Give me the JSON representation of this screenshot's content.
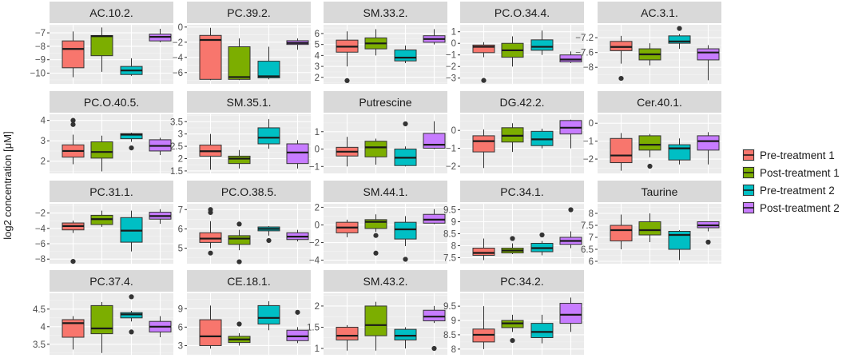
{
  "figure": {
    "y_axis_label": "log2 concentration [μM]",
    "legend": [
      {
        "label": "Pre-treatment 1",
        "color": "#F8766D"
      },
      {
        "label": "Post-treatment 1",
        "color": "#7CAE00"
      },
      {
        "label": "Pre-treatment 2",
        "color": "#00BFC4"
      },
      {
        "label": "Post-treatment 2",
        "color": "#C77CFF"
      }
    ],
    "legend_position": "right"
  },
  "chart_data": {
    "type": "boxplot",
    "groups": [
      "Pre-treatment 1",
      "Post-treatment 1",
      "Pre-treatment 2",
      "Post-treatment 2"
    ],
    "ylabel": "log2 concentration [μM]",
    "xlabel": "",
    "facets": [
      {
        "title": "AC.10.2.",
        "ylim": [
          -10.8,
          -6.4
        ],
        "yticks": [
          -7,
          -8,
          -9,
          -10
        ],
        "boxes": [
          {
            "min": -10.3,
            "q1": -9.6,
            "median": -8.2,
            "q3": -7.6,
            "max": -6.9,
            "outliers": []
          },
          {
            "min": -9.9,
            "q1": -8.7,
            "median": -7.25,
            "q3": -7.2,
            "max": -6.6,
            "outliers": []
          },
          {
            "min": -10.2,
            "q1": -10.1,
            "median": -9.8,
            "q3": -9.5,
            "max": -8.9,
            "outliers": []
          },
          {
            "min": -7.7,
            "q1": -7.6,
            "median": -7.3,
            "q3": -7.1,
            "max": -6.7,
            "outliers": []
          }
        ]
      },
      {
        "title": "PC.39.2.",
        "ylim": [
          -7.5,
          0.3
        ],
        "yticks": [
          0,
          -2,
          -4,
          -6
        ],
        "boxes": [
          {
            "min": -7.0,
            "q1": -6.9,
            "median": -1.7,
            "q3": -1.1,
            "max": -0.1,
            "outliers": []
          },
          {
            "min": -7.0,
            "q1": -6.9,
            "median": -6.6,
            "q3": -2.6,
            "max": -1.5,
            "outliers": []
          },
          {
            "min": -6.9,
            "q1": -6.7,
            "median": -6.5,
            "q3": -4.5,
            "max": -2.6,
            "outliers": []
          },
          {
            "min": -3.0,
            "q1": -2.3,
            "median": -2.1,
            "q3": -1.8,
            "max": -1.5,
            "outliers": []
          }
        ]
      },
      {
        "title": "SM.33.2.",
        "ylim": [
          1.4,
          6.8
        ],
        "yticks": [
          6,
          5,
          4,
          3,
          2
        ],
        "boxes": [
          {
            "min": 3.0,
            "q1": 4.3,
            "median": 4.8,
            "q3": 5.4,
            "max": 6.2,
            "outliers": [
              1.7
            ]
          },
          {
            "min": 4.0,
            "q1": 4.6,
            "median": 5.1,
            "q3": 5.6,
            "max": 6.4,
            "outliers": []
          },
          {
            "min": 3.3,
            "q1": 3.5,
            "median": 3.8,
            "q3": 4.5,
            "max": 4.9,
            "outliers": []
          },
          {
            "min": 5.0,
            "q1": 5.2,
            "median": 5.5,
            "q3": 5.8,
            "max": 6.4,
            "outliers": []
          }
        ]
      },
      {
        "title": "PC.O.34.4.",
        "ylim": [
          -3.5,
          1.6
        ],
        "yticks": [
          1,
          0,
          -1,
          -2,
          -3
        ],
        "boxes": [
          {
            "min": -1.2,
            "q1": -0.8,
            "median": -0.3,
            "q3": -0.15,
            "max": 0.1,
            "outliers": [
              -3.2
            ]
          },
          {
            "min": -2.0,
            "q1": -1.2,
            "median": -0.6,
            "q3": 0.0,
            "max": 0.6,
            "outliers": []
          },
          {
            "min": -1.0,
            "q1": -0.6,
            "median": -0.3,
            "q3": 0.3,
            "max": 1.1,
            "outliers": []
          },
          {
            "min": -1.7,
            "q1": -1.6,
            "median": -1.4,
            "q3": -1.0,
            "max": -0.7,
            "outliers": []
          }
        ]
      },
      {
        "title": "AC.3.1.",
        "ylim": [
          -8.45,
          -6.85
        ],
        "yticks": [
          -7.2,
          -7.6,
          -8.0
        ],
        "boxes": [
          {
            "min": -7.9,
            "q1": -7.55,
            "median": -7.45,
            "q3": -7.3,
            "max": -7.15,
            "outliers": [
              -8.3
            ]
          },
          {
            "min": -7.95,
            "q1": -7.8,
            "median": -7.65,
            "q3": -7.5,
            "max": -7.35,
            "outliers": []
          },
          {
            "min": -7.5,
            "q1": -7.35,
            "median": -7.3,
            "q3": -7.15,
            "max": -7.1,
            "outliers": [
              -6.95
            ]
          },
          {
            "min": -8.35,
            "q1": -7.8,
            "median": -7.6,
            "q3": -7.5,
            "max": -7.4,
            "outliers": []
          }
        ]
      },
      {
        "title": "PC.O.40.5.",
        "ylim": [
          1.4,
          4.3
        ],
        "yticks": [
          4,
          3,
          2
        ],
        "boxes": [
          {
            "min": 1.85,
            "q1": 2.2,
            "median": 2.5,
            "q3": 2.8,
            "max": 3.3,
            "outliers": [
              3.8,
              4.0
            ]
          },
          {
            "min": 1.5,
            "q1": 2.15,
            "median": 2.45,
            "q3": 2.95,
            "max": 3.25,
            "outliers": []
          },
          {
            "min": 2.95,
            "q1": 3.1,
            "median": 3.3,
            "q3": 3.35,
            "max": 3.4,
            "outliers": [
              2.65
            ]
          },
          {
            "min": 2.3,
            "q1": 2.5,
            "median": 2.75,
            "q3": 3.05,
            "max": 3.15,
            "outliers": []
          }
        ]
      },
      {
        "title": "SM.35.1.",
        "ylim": [
          1.4,
          3.8
        ],
        "yticks": [
          3.5,
          3.0,
          2.5,
          2.0,
          1.5
        ],
        "boxes": [
          {
            "min": 1.55,
            "q1": 2.1,
            "median": 2.3,
            "q3": 2.55,
            "max": 3.0,
            "outliers": []
          },
          {
            "min": 1.6,
            "q1": 1.8,
            "median": 2.0,
            "q3": 2.1,
            "max": 2.35,
            "outliers": []
          },
          {
            "min": 2.4,
            "q1": 2.6,
            "median": 2.85,
            "q3": 3.25,
            "max": 3.6,
            "outliers": []
          },
          {
            "min": 1.6,
            "q1": 1.8,
            "median": 2.25,
            "q3": 2.6,
            "max": 2.75,
            "outliers": []
          }
        ]
      },
      {
        "title": "Putrescine",
        "ylim": [
          -1.4,
          2.0
        ],
        "yticks": [
          1,
          0,
          -1
        ],
        "boxes": [
          {
            "min": -1.0,
            "q1": -0.4,
            "median": -0.15,
            "q3": 0.1,
            "max": 0.7,
            "outliers": []
          },
          {
            "min": -0.9,
            "q1": -0.45,
            "median": 0.1,
            "q3": 0.45,
            "max": 0.6,
            "outliers": []
          },
          {
            "min": -1.0,
            "q1": -0.95,
            "median": -0.5,
            "q3": 0.0,
            "max": 0.15,
            "outliers": [
              1.45
            ]
          },
          {
            "min": 0.0,
            "q1": 0.05,
            "median": 0.25,
            "q3": 0.9,
            "max": 1.6,
            "outliers": []
          }
        ]
      },
      {
        "title": "DG.42.2.",
        "ylim": [
          -2.4,
          0.9
        ],
        "yticks": [
          0,
          -1,
          -2
        ],
        "boxes": [
          {
            "min": -2.1,
            "q1": -1.2,
            "median": -0.6,
            "q3": -0.3,
            "max": 0.05,
            "outliers": []
          },
          {
            "min": -1.2,
            "q1": -0.65,
            "median": -0.3,
            "q3": 0.15,
            "max": 0.4,
            "outliers": []
          },
          {
            "min": -1.0,
            "q1": -0.85,
            "median": -0.5,
            "q3": -0.05,
            "max": 0.1,
            "outliers": []
          },
          {
            "min": -1.0,
            "q1": -0.2,
            "median": 0.15,
            "q3": 0.55,
            "max": 0.6,
            "outliers": []
          }
        ]
      },
      {
        "title": "Cer.40.1.",
        "ylim": [
          -2.8,
          0.5
        ],
        "yticks": [
          0,
          -1,
          -2
        ],
        "boxes": [
          {
            "min": -2.65,
            "q1": -2.2,
            "median": -1.8,
            "q3": -0.85,
            "max": -0.55,
            "outliers": []
          },
          {
            "min": -1.9,
            "q1": -1.5,
            "median": -1.2,
            "q3": -0.7,
            "max": -0.6,
            "outliers": [
              -2.4
            ]
          },
          {
            "min": -2.3,
            "q1": -2.05,
            "median": -1.4,
            "q3": -1.2,
            "max": -0.85,
            "outliers": []
          },
          {
            "min": -2.3,
            "q1": -1.5,
            "median": -1.0,
            "q3": -0.7,
            "max": -0.5,
            "outliers": []
          }
        ]
      },
      {
        "title": "PC.31.1.",
        "ylim": [
          -8.6,
          -0.8
        ],
        "yticks": [
          -2,
          -4,
          -6,
          -8
        ],
        "boxes": [
          {
            "min": -4.6,
            "q1": -4.2,
            "median": -3.7,
            "q3": -3.3,
            "max": -3.0,
            "outliers": [
              -8.3
            ]
          },
          {
            "min": -3.8,
            "q1": -3.5,
            "median": -2.8,
            "q3": -2.3,
            "max": -1.7,
            "outliers": []
          },
          {
            "min": -7.0,
            "q1": -5.8,
            "median": -4.3,
            "q3": -2.6,
            "max": -1.7,
            "outliers": []
          },
          {
            "min": -3.4,
            "q1": -2.8,
            "median": -2.4,
            "q3": -1.9,
            "max": -1.5,
            "outliers": []
          }
        ]
      },
      {
        "title": "PC.O.38.5.",
        "ylim": [
          4.2,
          7.3
        ],
        "yticks": [
          7,
          6,
          5
        ],
        "boxes": [
          {
            "min": 5.0,
            "q1": 5.3,
            "median": 5.5,
            "q3": 5.8,
            "max": 6.4,
            "outliers": [
              4.75,
              6.85,
              7.0
            ]
          },
          {
            "min": 4.9,
            "q1": 5.2,
            "median": 5.5,
            "q3": 5.65,
            "max": 5.95,
            "outliers": [
              4.3,
              6.25
            ]
          },
          {
            "min": 5.65,
            "q1": 5.9,
            "median": 6.0,
            "q3": 6.1,
            "max": 6.15,
            "outliers": [
              5.4
            ]
          },
          {
            "min": 5.35,
            "q1": 5.45,
            "median": 5.6,
            "q3": 5.8,
            "max": 5.95,
            "outliers": []
          }
        ]
      },
      {
        "title": "SM.44.1.",
        "ylim": [
          -4.4,
          2.4
        ],
        "yticks": [
          2,
          0,
          -2,
          -4
        ],
        "boxes": [
          {
            "min": -1.4,
            "q1": -0.9,
            "median": -0.3,
            "q3": 0.3,
            "max": 0.6,
            "outliers": []
          },
          {
            "min": -0.8,
            "q1": -0.4,
            "median": 0.35,
            "q3": 0.6,
            "max": 1.2,
            "outliers": [
              -1.2,
              -3.2
            ]
          },
          {
            "min": -2.4,
            "q1": -1.6,
            "median": -0.5,
            "q3": 0.3,
            "max": 1.0,
            "outliers": [
              -3.9
            ]
          },
          {
            "min": 0.1,
            "q1": 0.2,
            "median": 0.6,
            "q3": 1.2,
            "max": 1.8,
            "outliers": []
          }
        ]
      },
      {
        "title": "PC.34.1.",
        "ylim": [
          7.25,
          9.75
        ],
        "yticks": [
          9.5,
          9.0,
          8.5,
          8.0,
          7.5
        ],
        "boxes": [
          {
            "min": 7.4,
            "q1": 7.6,
            "median": 7.7,
            "q3": 7.9,
            "max": 8.3,
            "outliers": []
          },
          {
            "min": 7.65,
            "q1": 7.7,
            "median": 7.8,
            "q3": 7.9,
            "max": 8.1,
            "outliers": [
              8.3
            ]
          },
          {
            "min": 7.6,
            "q1": 7.75,
            "median": 7.9,
            "q3": 8.1,
            "max": 8.2,
            "outliers": [
              8.45
            ]
          },
          {
            "min": 7.9,
            "q1": 8.05,
            "median": 8.2,
            "q3": 8.35,
            "max": 8.6,
            "outliers": [
              9.5
            ]
          }
        ]
      },
      {
        "title": "Taurine",
        "ylim": [
          5.9,
          8.4
        ],
        "yticks": [
          8.0,
          7.5,
          7.0,
          6.5,
          6.0
        ],
        "boxes": [
          {
            "min": 6.5,
            "q1": 6.85,
            "median": 7.3,
            "q3": 7.5,
            "max": 7.95,
            "outliers": []
          },
          {
            "min": 6.8,
            "q1": 7.1,
            "median": 7.3,
            "q3": 7.65,
            "max": 8.0,
            "outliers": []
          },
          {
            "min": 6.05,
            "q1": 6.5,
            "median": 7.1,
            "q3": 7.25,
            "max": 7.3,
            "outliers": []
          },
          {
            "min": 7.25,
            "q1": 7.4,
            "median": 7.5,
            "q3": 7.65,
            "max": 7.65,
            "outliers": [
              6.8
            ]
          }
        ]
      },
      {
        "title": "PC.37.4.",
        "ylim": [
          3.2,
          4.95
        ],
        "yticks": [
          4.5,
          4.0,
          3.5
        ],
        "boxes": [
          {
            "min": 3.35,
            "q1": 3.7,
            "median": 4.1,
            "q3": 4.2,
            "max": 4.3,
            "outliers": []
          },
          {
            "min": 3.25,
            "q1": 3.8,
            "median": 3.95,
            "q3": 4.6,
            "max": 4.7,
            "outliers": []
          },
          {
            "min": 4.15,
            "q1": 4.25,
            "median": 4.35,
            "q3": 4.4,
            "max": 4.45,
            "outliers": [
              3.85,
              4.85
            ]
          },
          {
            "min": 3.7,
            "q1": 3.85,
            "median": 4.0,
            "q3": 4.15,
            "max": 4.3,
            "outliers": []
          }
        ]
      },
      {
        "title": "CE.18.1.",
        "ylim": [
          1.5,
          11.5
        ],
        "yticks": [
          9,
          6,
          3
        ],
        "boxes": [
          {
            "min": 2.5,
            "q1": 3.0,
            "median": 4.5,
            "q3": 7.2,
            "max": 9.5,
            "outliers": []
          },
          {
            "min": 3.0,
            "q1": 3.5,
            "median": 4.0,
            "q3": 4.5,
            "max": 5.0,
            "outliers": [
              6.5
            ]
          },
          {
            "min": 5.5,
            "q1": 6.5,
            "median": 7.5,
            "q3": 9.5,
            "max": 10.2,
            "outliers": []
          },
          {
            "min": 3.4,
            "q1": 3.8,
            "median": 4.5,
            "q3": 5.5,
            "max": 6.0,
            "outliers": [
              8.4
            ]
          }
        ]
      },
      {
        "title": "SM.43.2.",
        "ylim": [
          0.85,
          2.3
        ],
        "yticks": [
          2.0,
          1.5,
          1.0
        ],
        "boxes": [
          {
            "min": 0.95,
            "q1": 1.2,
            "median": 1.3,
            "q3": 1.5,
            "max": 1.55,
            "outliers": []
          },
          {
            "min": 0.95,
            "q1": 1.3,
            "median": 1.55,
            "q3": 2.0,
            "max": 2.1,
            "outliers": []
          },
          {
            "min": 1.0,
            "q1": 1.2,
            "median": 1.3,
            "q3": 1.45,
            "max": 1.5,
            "outliers": []
          },
          {
            "min": 1.6,
            "q1": 1.65,
            "median": 1.75,
            "q3": 1.9,
            "max": 2.0,
            "outliers": [
              1.0
            ]
          }
        ]
      },
      {
        "title": "PC.34.2.",
        "ylim": [
          7.8,
          9.95
        ],
        "yticks": [
          9.5,
          9.0,
          8.5,
          8.0
        ],
        "boxes": [
          {
            "min": 8.0,
            "q1": 8.25,
            "median": 8.5,
            "q3": 8.7,
            "max": 9.5,
            "outliers": []
          },
          {
            "min": 8.6,
            "q1": 8.75,
            "median": 8.9,
            "q3": 9.0,
            "max": 9.2,
            "outliers": [
              8.3
            ]
          },
          {
            "min": 8.2,
            "q1": 8.4,
            "median": 8.6,
            "q3": 8.9,
            "max": 9.2,
            "outliers": []
          },
          {
            "min": 8.6,
            "q1": 8.9,
            "median": 9.2,
            "q3": 9.6,
            "max": 9.8,
            "outliers": []
          }
        ]
      }
    ]
  }
}
